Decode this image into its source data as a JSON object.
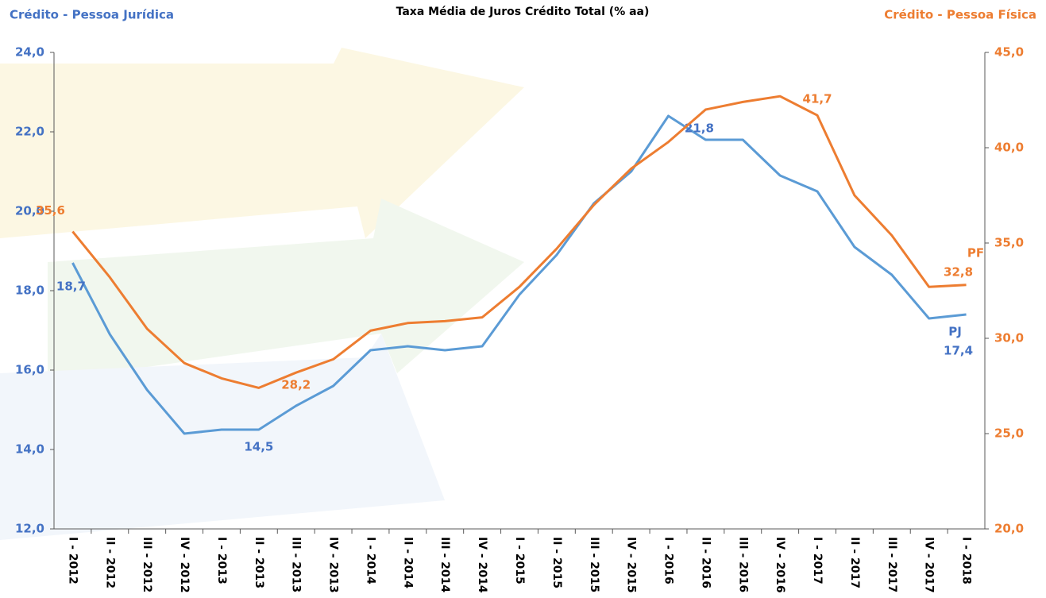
{
  "chart_data": {
    "type": "line",
    "title": "Taxa Média de Juros Crédito Total (% aa)",
    "y_label": "Crédito - Pessoa Jurídica",
    "y2_label": "Crédito - Pessoa Física",
    "categories": [
      "I - 2012",
      "II - 2012",
      "III - 2012",
      "IV - 2012",
      "I - 2013",
      "II - 2013",
      "III - 2013",
      "IV - 2013",
      "I - 2014",
      "II - 2014",
      "III - 2014",
      "IV - 2014",
      "I - 2015",
      "II - 2015",
      "III - 2015",
      "IV - 2015",
      "I - 2016",
      "II - 2016",
      "III - 2016",
      "IV - 2016",
      "I - 2017",
      "II - 2017",
      "III - 2017",
      "IV - 2017",
      "I - 2018"
    ],
    "series": [
      {
        "name": "PJ",
        "color": "#5b9bd5",
        "values": [
          18.7,
          16.9,
          15.5,
          14.4,
          14.5,
          14.5,
          15.1,
          15.6,
          16.5,
          16.6,
          16.5,
          16.6,
          17.9,
          18.9,
          20.2,
          21.0,
          22.4,
          21.8,
          21.8,
          20.9,
          20.5,
          19.1,
          18.4,
          17.3,
          17.4
        ],
        "value_labels": [
          "18,7",
          null,
          null,
          null,
          null,
          "14,5",
          null,
          null,
          null,
          null,
          null,
          null,
          null,
          null,
          null,
          null,
          null,
          "21,8",
          null,
          null,
          null,
          null,
          null,
          null,
          "17,4"
        ]
      },
      {
        "name": "PF",
        "color": "#ed7d31",
        "axis": "y2",
        "values": [
          35.6,
          33.2,
          30.5,
          28.7,
          27.9,
          27.4,
          28.2,
          28.9,
          30.4,
          30.8,
          30.9,
          31.1,
          32.7,
          34.7,
          37.0,
          38.9,
          40.3,
          42.0,
          42.4,
          42.7,
          41.7,
          37.5,
          35.4,
          32.7,
          32.8
        ],
        "value_labels": [
          "35,6",
          null,
          null,
          null,
          null,
          null,
          "28,2",
          null,
          null,
          null,
          null,
          null,
          null,
          null,
          null,
          null,
          null,
          null,
          null,
          null,
          "41,7",
          null,
          null,
          null,
          "32,8"
        ]
      }
    ],
    "ylim": [
      12,
      24
    ],
    "yticks": [
      {
        "value": 12,
        "label": "12,0"
      },
      {
        "value": 14,
        "label": "14,0"
      },
      {
        "value": 16,
        "label": "16,0"
      },
      {
        "value": 18,
        "label": "18,0"
      },
      {
        "value": 20,
        "label": "20,0"
      },
      {
        "value": 22,
        "label": "22,0"
      },
      {
        "value": 24,
        "label": "24,0"
      }
    ],
    "y2lim": [
      20,
      45
    ],
    "y2ticks": [
      {
        "value": 20,
        "label": "20,0"
      },
      {
        "value": 25,
        "label": "25,0"
      },
      {
        "value": 30,
        "label": "30,0"
      },
      {
        "value": 35,
        "label": "35,0"
      },
      {
        "value": 40,
        "label": "40,0"
      },
      {
        "value": 45,
        "label": "45,0"
      }
    ],
    "grid": false
  }
}
